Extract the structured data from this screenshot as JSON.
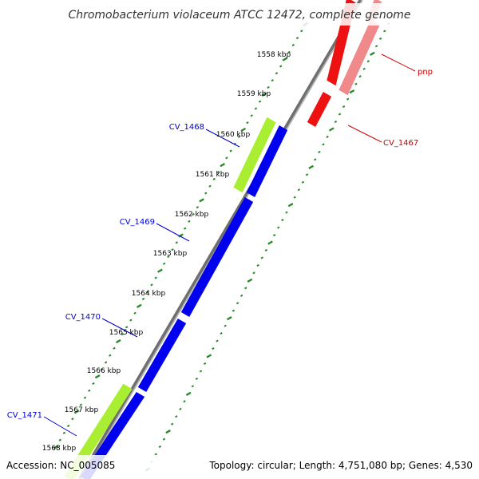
{
  "title": "Chromobacterium violaceum ATCC 12472, complete genome",
  "footer": {
    "accession": "Accession: NC_005085",
    "summary": "Topology: circular; Length: 4,751,080 bp; Genes: 4,530"
  },
  "ticks": [
    {
      "label": "1558 kbp"
    },
    {
      "label": "1559 kbp"
    },
    {
      "label": "1560 kbp"
    },
    {
      "label": "1561 kbp"
    },
    {
      "label": "1562 kbp"
    },
    {
      "label": "1563 kbp"
    },
    {
      "label": "1564 kbp"
    },
    {
      "label": "1565 kbp"
    },
    {
      "label": "1566 kbp"
    },
    {
      "label": "1567 kbp"
    },
    {
      "label": "1568 kbp"
    }
  ],
  "genes": [
    {
      "name": "pnp",
      "strand": "forward",
      "color": "#cc0000"
    },
    {
      "name": "CV_1467",
      "strand": "forward",
      "color": "#cc0000"
    },
    {
      "name": "CV_1468",
      "strand": "reverse",
      "color": "#0000cc"
    },
    {
      "name": "CV_1469",
      "strand": "reverse",
      "color": "#0000cc"
    },
    {
      "name": "CV_1470",
      "strand": "reverse",
      "color": "#0000cc"
    },
    {
      "name": "CV_1471",
      "strand": "reverse",
      "color": "#0000cc"
    }
  ],
  "colors": {
    "forward_cds": "#ee1111",
    "forward_cds_light": "#f08a8a",
    "reverse_cds": "#0000ee",
    "reverse_gene": "#aaee33",
    "backbone": "#888888",
    "tick": "#2a8a2a",
    "forward_label": "#cc0000",
    "reverse_label": "#0000cc"
  }
}
